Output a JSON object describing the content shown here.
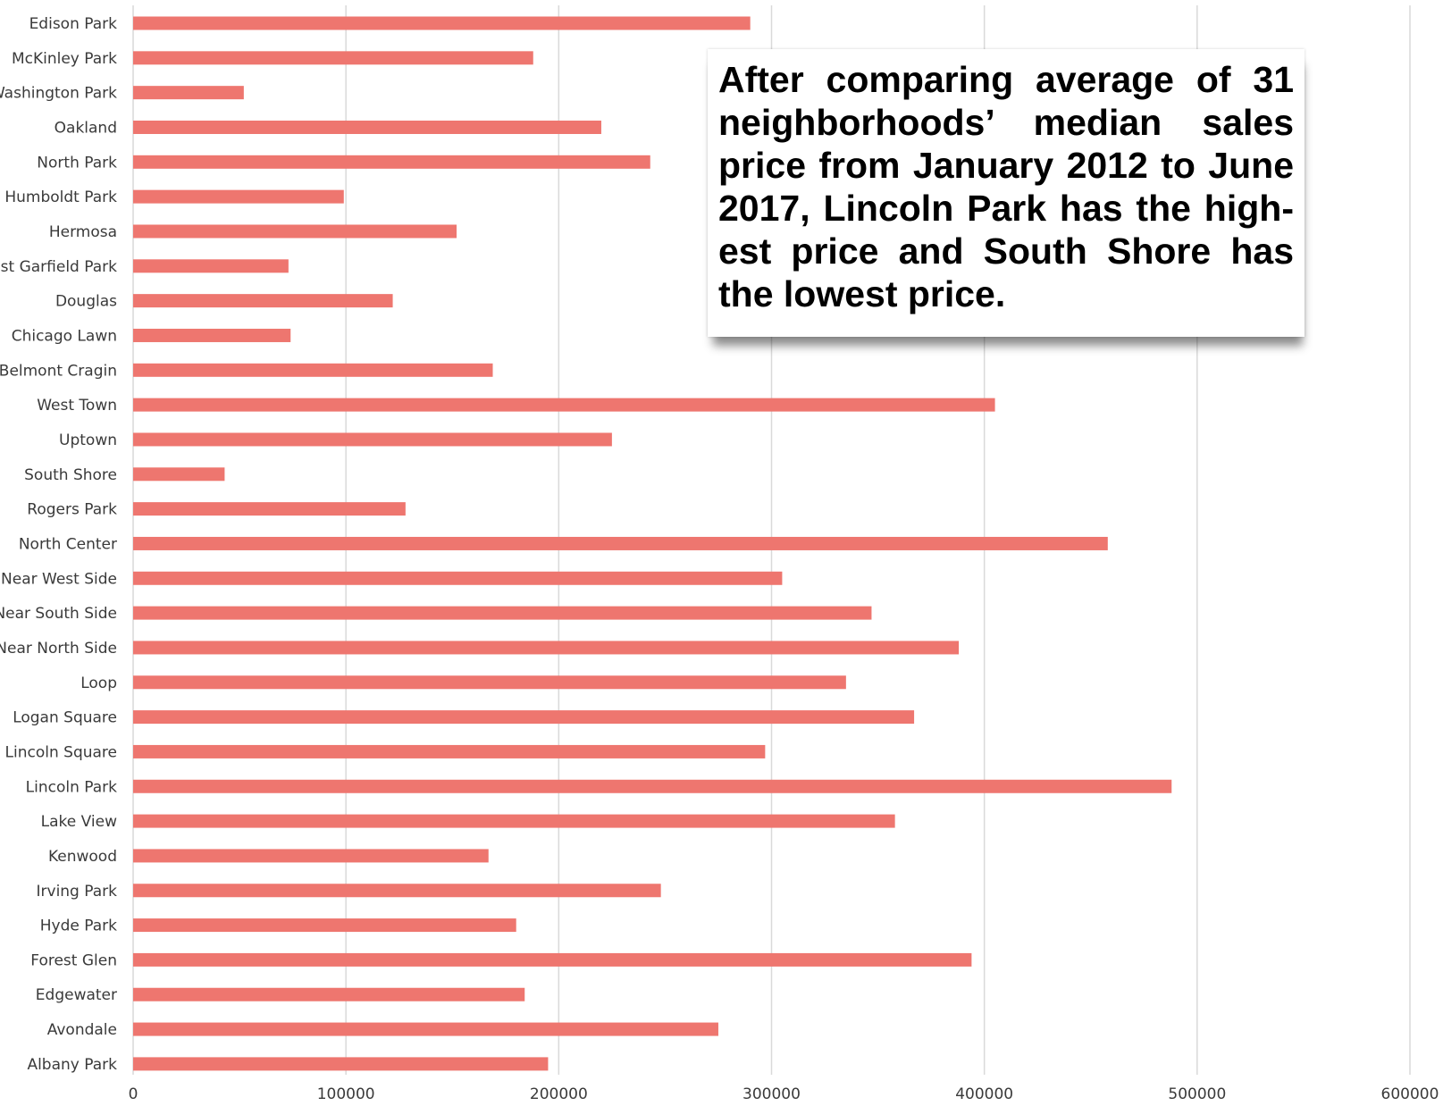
{
  "chart_data": {
    "type": "bar",
    "orientation": "horizontal",
    "categories": [
      "Edison Park",
      "McKinley Park",
      "Washington Park",
      "Oakland",
      "North Park",
      "Humboldt Park",
      "Hermosa",
      "East Garfield Park",
      "Douglas",
      "Chicago Lawn",
      "Belmont Cragin",
      "West Town",
      "Uptown",
      "South Shore",
      "Rogers Park",
      "North Center",
      "Near West Side",
      "Near South Side",
      "Near North Side",
      "Loop",
      "Logan Square",
      "Lincoln Square",
      "Lincoln Park",
      "Lake View",
      "Kenwood",
      "Irving Park",
      "Hyde Park",
      "Forest Glen",
      "Edgewater",
      "Avondale",
      "Albany Park"
    ],
    "values": [
      290000,
      188000,
      52000,
      220000,
      243000,
      99000,
      152000,
      73000,
      122000,
      74000,
      169000,
      405000,
      225000,
      43000,
      128000,
      458000,
      305000,
      347000,
      388000,
      335000,
      367000,
      297000,
      488000,
      358000,
      167000,
      248000,
      180000,
      394000,
      184000,
      275000,
      195000
    ],
    "xlim": [
      0,
      600000
    ],
    "xticks": [
      "0",
      "100000",
      "200000",
      "300000",
      "400000",
      "500000",
      "600000"
    ],
    "grid": true,
    "bar_color": "#ee766f",
    "grid_color": "#d9d9d9"
  },
  "annotation": {
    "text": "After comparing average of 31 neighborhoods’ median sales price from January 2012 to June 2017, Lincoln Park has the high­est price and South Shore has the lowest price."
  }
}
